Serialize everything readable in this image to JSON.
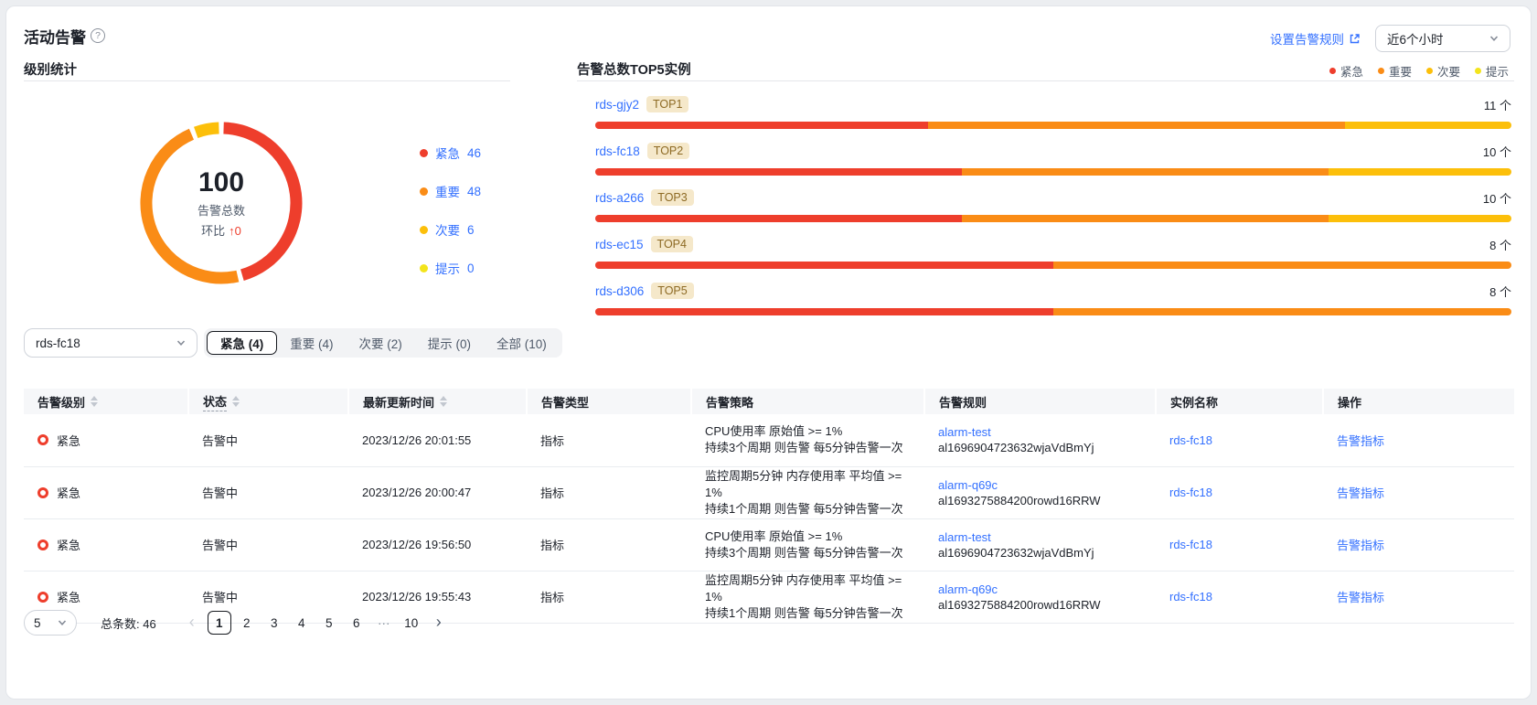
{
  "page": {
    "title": "活动告警"
  },
  "icons": {
    "help": "?",
    "up_arrow": "↑",
    "prev": "‹",
    "next": "›"
  },
  "colors": {
    "critical": "#ee3e2c",
    "major": "#fa8c16",
    "minor": "#fcbf0a",
    "info": "#f3e41c",
    "link": "#3370ff"
  },
  "header": {
    "rules_link_label": "设置告警规则",
    "time_range_value": "近6个小时"
  },
  "chart_data": [
    {
      "type": "pie",
      "donut": true,
      "title": "级别统计",
      "labels": [
        "紧急",
        "重要",
        "次要",
        "提示"
      ],
      "values": [
        46,
        48,
        6,
        0
      ],
      "colors": [
        "#ee3e2c",
        "#fa8c16",
        "#fcbf0a",
        "#f3e41c"
      ],
      "center_total": "100",
      "center_label": "告警总数",
      "mom_label": "环比",
      "mom_delta": "0",
      "legend_position": "right"
    },
    {
      "type": "bar",
      "orientation": "horizontal",
      "stacked": true,
      "normalized_width": true,
      "title": "告警总数TOP5实例",
      "categories": [
        "rds-gjy2",
        "rds-fc18",
        "rds-a266",
        "rds-ec15",
        "rds-d306"
      ],
      "ranks": [
        "TOP1",
        "TOP2",
        "TOP3",
        "TOP4",
        "TOP5"
      ],
      "totals": [
        11,
        10,
        10,
        8,
        8
      ],
      "unit": "个",
      "legend": [
        "紧急",
        "重要",
        "次要",
        "提示"
      ],
      "series": [
        {
          "name": "紧急",
          "color": "#ee3e2c",
          "values": [
            4,
            4,
            4,
            4,
            4
          ]
        },
        {
          "name": "重要",
          "color": "#fa8c16",
          "values": [
            5,
            4,
            4,
            4,
            4
          ]
        },
        {
          "name": "次要",
          "color": "#fcbf0a",
          "values": [
            2,
            2,
            2,
            0,
            0
          ]
        },
        {
          "name": "提示",
          "color": "#f3e41c",
          "values": [
            0,
            0,
            0,
            0,
            0
          ]
        }
      ]
    }
  ],
  "filters": {
    "instance_select_value": "rds-fc18",
    "tabs": [
      {
        "label": "紧急 (4)",
        "active": true
      },
      {
        "label": "重要 (4)",
        "active": false
      },
      {
        "label": "次要 (2)",
        "active": false
      },
      {
        "label": "提示 (0)",
        "active": false
      },
      {
        "label": "全部 (10)",
        "active": false
      }
    ]
  },
  "table": {
    "columns": [
      {
        "label": "告警级别",
        "sortable": true
      },
      {
        "label": "状态",
        "sortable": true,
        "dashed": true
      },
      {
        "label": "最新更新时间",
        "sortable": true
      },
      {
        "label": "告警类型"
      },
      {
        "label": "告警策略"
      },
      {
        "label": "告警规则"
      },
      {
        "label": "实例名称"
      },
      {
        "label": "操作"
      }
    ],
    "rows": [
      {
        "level": "紧急",
        "status": "告警中",
        "time": "2023/12/26 20:01:55",
        "type": "指标",
        "policy": [
          "CPU使用率 原始值 >= 1%",
          "持续3个周期 则告警 每5分钟告警一次"
        ],
        "rule_name": "alarm-test",
        "rule_id": "al1696904723632wjaVdBmYj",
        "instance": "rds-fc18",
        "action": "告警指标"
      },
      {
        "level": "紧急",
        "status": "告警中",
        "time": "2023/12/26 20:00:47",
        "type": "指标",
        "policy": [
          "监控周期5分钟 内存使用率 平均值 >= 1%",
          "持续1个周期 则告警 每5分钟告警一次"
        ],
        "rule_name": "alarm-q69c",
        "rule_id": "al1693275884200rowd16RRW",
        "instance": "rds-fc18",
        "action": "告警指标"
      },
      {
        "level": "紧急",
        "status": "告警中",
        "time": "2023/12/26 19:56:50",
        "type": "指标",
        "policy": [
          "CPU使用率 原始值 >= 1%",
          "持续3个周期 则告警 每5分钟告警一次"
        ],
        "rule_name": "alarm-test",
        "rule_id": "al1696904723632wjaVdBmYj",
        "instance": "rds-fc18",
        "action": "告警指标"
      },
      {
        "level": "紧急",
        "status": "告警中",
        "time": "2023/12/26 19:55:43",
        "type": "指标",
        "policy": [
          "监控周期5分钟 内存使用率 平均值 >= 1%",
          "持续1个周期 则告警 每5分钟告警一次"
        ],
        "rule_name": "alarm-q69c",
        "rule_id": "al1693275884200rowd16RRW",
        "instance": "rds-fc18",
        "action": "告警指标"
      }
    ]
  },
  "pagination": {
    "page_size": "5",
    "total_label": "总条数:",
    "total_value": "46",
    "pages": [
      "1",
      "2",
      "3",
      "4",
      "5",
      "6",
      "···",
      "10"
    ],
    "current": "1"
  }
}
